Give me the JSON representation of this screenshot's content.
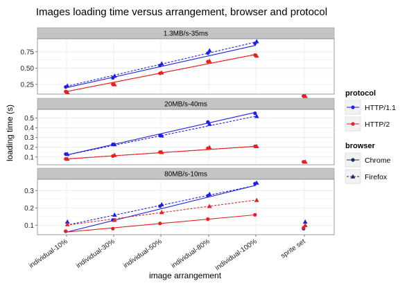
{
  "chart_data": {
    "type": "line",
    "title": "Images loading time versus arrangement, browser and protocol",
    "xlabel": "image arrangement",
    "ylabel": "loading time (s)",
    "categories": [
      "individual-10%",
      "individual-30%",
      "individual-50%",
      "individual-80%",
      "individual-100%",
      "sprite set"
    ],
    "grid": true,
    "legend_placement": "right",
    "legend": {
      "protocol": {
        "title": "protocol",
        "items": [
          {
            "label": "HTTP/1.1",
            "color": "#1f1fe6"
          },
          {
            "label": "HTTP/2",
            "color": "#e61f1f"
          }
        ]
      },
      "browser": {
        "title": "browser",
        "items": [
          {
            "label": "Chrome",
            "marker": "circle",
            "line": "solid"
          },
          {
            "label": "Firefox",
            "marker": "triangle",
            "line": "dashed"
          }
        ]
      }
    },
    "colors": {
      "HTTP/1.1": "#1f1fe6",
      "HTTP/2": "#e61f1f",
      "strip": "#c4c4c4",
      "grid": "#e8e8e8"
    },
    "panels": [
      {
        "strip": "1.3MB/s-35ms",
        "ylim": [
          0.1,
          0.95
        ],
        "yticks": [
          {
            "value": 0.25,
            "label": "0.25"
          },
          {
            "value": 0.5,
            "label": "0.50"
          },
          {
            "value": 0.75,
            "label": "0.75"
          }
        ],
        "series": [
          {
            "protocol": "HTTP/1.1",
            "browser": "Chrome",
            "values": [
              0.21,
              0.35,
              0.54,
              0.73,
              0.88,
              0.07
            ],
            "trend": [
              0.2,
              0.85
            ]
          },
          {
            "protocol": "HTTP/1.1",
            "browser": "Firefox",
            "values": [
              0.23,
              0.38,
              0.57,
              0.77,
              0.91,
              0.07
            ],
            "trend": [
              0.22,
              0.9
            ]
          },
          {
            "protocol": "HTTP/2",
            "browser": "Chrome",
            "values": [
              0.14,
              0.25,
              0.42,
              0.6,
              0.7,
              0.07
            ],
            "trend": [
              0.14,
              0.71
            ]
          },
          {
            "protocol": "HTTP/2",
            "browser": "Firefox",
            "values": [
              0.13,
              0.25,
              0.43,
              0.61,
              0.69,
              0.07
            ],
            "trend": [
              0.14,
              0.71
            ]
          }
        ]
      },
      {
        "strip": "20MB/s-40ms",
        "ylim": [
          0.02,
          0.59
        ],
        "yticks": [
          {
            "value": 0.1,
            "label": "0.1"
          },
          {
            "value": 0.2,
            "label": "0.2"
          },
          {
            "value": 0.3,
            "label": "0.3"
          },
          {
            "value": 0.4,
            "label": "0.4"
          },
          {
            "value": 0.5,
            "label": "0.5"
          }
        ],
        "series": [
          {
            "protocol": "HTTP/1.1",
            "browser": "Chrome",
            "values": [
              0.13,
              0.23,
              0.32,
              0.46,
              0.55,
              0.05
            ],
            "trend": [
              0.12,
              0.56
            ]
          },
          {
            "protocol": "HTTP/1.1",
            "browser": "Firefox",
            "values": [
              0.13,
              0.23,
              0.32,
              0.44,
              0.52,
              0.05
            ],
            "trend": [
              0.12,
              0.52
            ]
          },
          {
            "protocol": "HTTP/2",
            "browser": "Chrome",
            "values": [
              0.08,
              0.11,
              0.15,
              0.19,
              0.21,
              0.05
            ],
            "trend": [
              0.08,
              0.21
            ]
          },
          {
            "protocol": "HTTP/2",
            "browser": "Firefox",
            "values": [
              0.08,
              0.12,
              0.15,
              0.2,
              0.21,
              0.05
            ],
            "trend": [
              0.08,
              0.21
            ]
          }
        ]
      },
      {
        "strip": "80MB/s-10ms",
        "ylim": [
          0.045,
          0.365
        ],
        "yticks": [
          {
            "value": 0.1,
            "label": "0.1"
          },
          {
            "value": 0.2,
            "label": "0.2"
          },
          {
            "value": 0.3,
            "label": "0.3"
          }
        ],
        "series": [
          {
            "protocol": "HTTP/1.1",
            "browser": "Chrome",
            "values": [
              0.065,
              0.13,
              0.21,
              0.27,
              0.34,
              0.08
            ],
            "trend": [
              0.06,
              0.33
            ]
          },
          {
            "protocol": "HTTP/1.1",
            "browser": "Firefox",
            "values": [
              0.12,
              0.16,
              0.22,
              0.28,
              0.345,
              0.12
            ],
            "trend": [
              0.1,
              0.33
            ]
          },
          {
            "protocol": "HTTP/2",
            "browser": "Chrome",
            "values": [
              0.065,
              0.08,
              0.11,
              0.135,
              0.16,
              0.085
            ],
            "trend": [
              0.06,
              0.16
            ]
          },
          {
            "protocol": "HTTP/2",
            "browser": "Firefox",
            "values": [
              0.105,
              0.13,
              0.175,
              0.21,
              0.245,
              0.1
            ],
            "trend": [
              0.1,
              0.245
            ]
          }
        ]
      }
    ]
  }
}
